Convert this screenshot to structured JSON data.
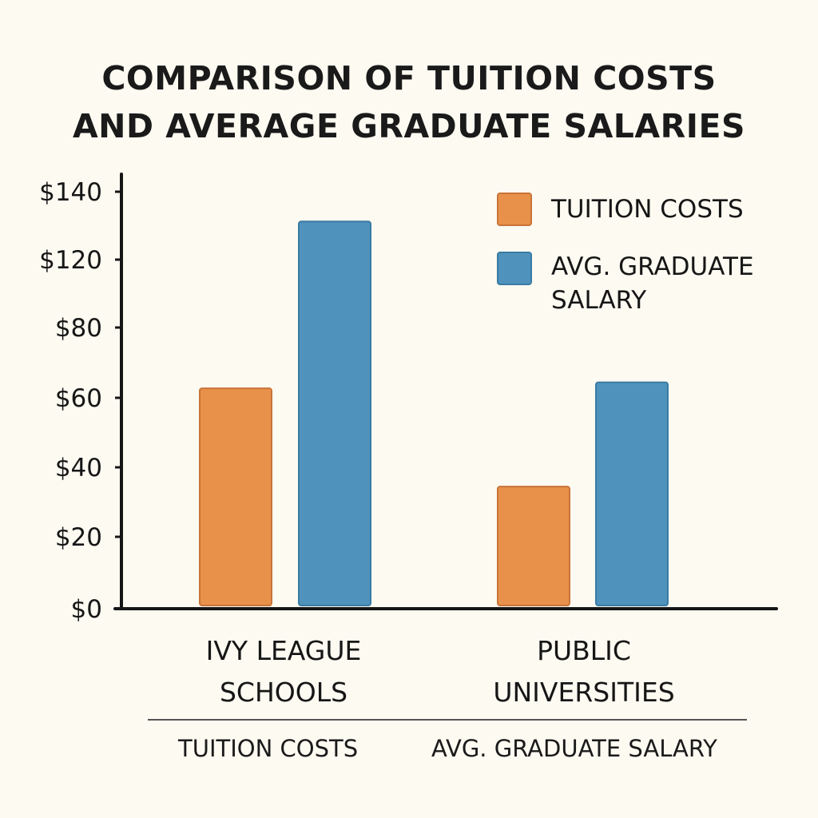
{
  "chart_data": {
    "type": "bar",
    "title_lines": [
      "COMPARISON OF TUITION COSTS",
      "AND AVERAGE GRADUATE SALARIES"
    ],
    "categories": [
      [
        "IVY LEAGUE",
        "SCHOOLS"
      ],
      [
        "PUBLIC",
        "UNIVERSITIES"
      ]
    ],
    "series": [
      {
        "name": "TUITION COSTS",
        "values": [
          74,
          41
        ],
        "color": "#e8914a"
      },
      {
        "name_lines": [
          "AVG. GRADUATE",
          "SALARY"
        ],
        "values": [
          130,
          76
        ],
        "color": "#4f93bd"
      }
    ],
    "y_tick_labels": [
      "$0",
      "$20",
      "$40",
      "$60",
      "$80",
      "$120",
      "$140"
    ],
    "y_tick_values": [
      0,
      20,
      40,
      60,
      80,
      120,
      140
    ],
    "ylim": [
      0,
      140
    ],
    "grid": false,
    "legend_position": "top-right"
  },
  "footer": {
    "left_text": "TUITION COSTS",
    "right_text": "AVG. GRADUATE SALARY"
  }
}
